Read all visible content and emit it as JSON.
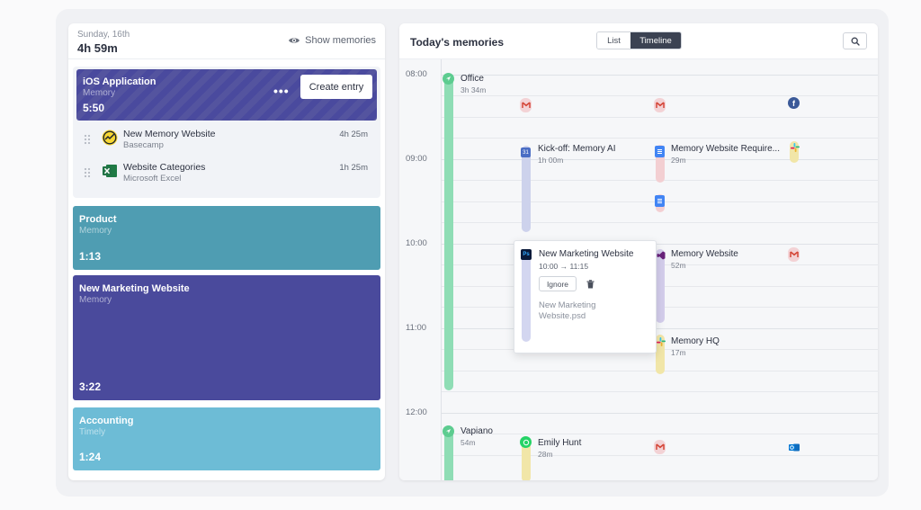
{
  "sidebar": {
    "date": "Sunday, 16th",
    "total": "4h 59m",
    "show_memories": "Show memories",
    "active_card": {
      "title": "iOS Application",
      "subtitle": "Memory",
      "time": "5:50",
      "more_label": "•••",
      "create_entry": "Create entry",
      "color": "#4a4a9e"
    },
    "activities": [
      {
        "name": "New Memory Website",
        "app": "Basecamp",
        "duration": "4h 25m",
        "icon": "basecamp-icon"
      },
      {
        "name": "Website Categories",
        "app": "Microsoft Excel",
        "duration": "1h 25m",
        "icon": "excel-icon"
      }
    ],
    "cards": [
      {
        "title": "Product",
        "subtitle": "Memory",
        "time": "1:13",
        "color": "#4f9db2"
      },
      {
        "title": "New Marketing Website",
        "subtitle": "Memory",
        "time": "3:22",
        "color": "#4a4a9c"
      },
      {
        "title": "Accounting",
        "subtitle": "Timely",
        "time": "1:24",
        "color": "#6dbcd6"
      }
    ]
  },
  "main": {
    "title": "Today's memories",
    "view_toggle": {
      "list": "List",
      "timeline": "Timeline",
      "selected": "Timeline"
    },
    "search_icon": "search-icon",
    "hours": [
      "08:00",
      "09:00",
      "10:00",
      "11:00",
      "12:00"
    ],
    "events": [
      {
        "title": "Office",
        "duration": "3h 34m",
        "icon": "location-icon"
      },
      {
        "title": "Kick-off: Memory AI",
        "duration": "1h 00m",
        "icon": "calendar-icon"
      },
      {
        "title": "Memory Website Require...",
        "duration": "29m",
        "icon": "google-docs-icon"
      },
      {
        "title": "Memory Website",
        "duration": "52m",
        "icon": "visual-studio-icon"
      },
      {
        "title": "Memory HQ",
        "duration": "17m",
        "icon": "slack-icon"
      },
      {
        "title": "Vapiano",
        "duration": "54m",
        "icon": "location-icon"
      },
      {
        "title": "Emily Hunt",
        "duration": "28m",
        "icon": "whatsapp-icon"
      }
    ],
    "popover": {
      "title": "New Marketing Website",
      "time": "10:00 → 11:15",
      "ignore": "Ignore",
      "file": "New Marketing Website.psd",
      "icon": "photoshop-icon"
    },
    "colors": {
      "green": "#67cf9a",
      "blue_track": "#c9cfea",
      "pink_track": "#f3cfd2",
      "yellow_track": "#f1e6a8",
      "purple_track": "#d3cdeb"
    }
  }
}
